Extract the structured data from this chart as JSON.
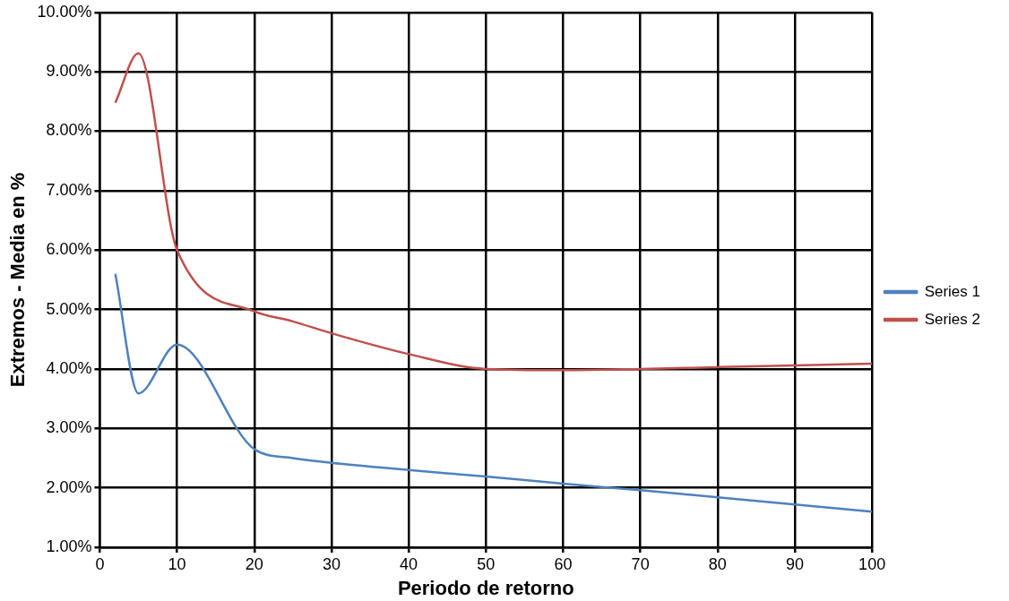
{
  "chart_data": {
    "type": "line",
    "xlabel": "Periodo de retorno",
    "ylabel": "Extremos - Media en %",
    "x": [
      2,
      5,
      10,
      20,
      25,
      30,
      40,
      50,
      60,
      70,
      80,
      90,
      100
    ],
    "series": [
      {
        "name": "Series 1",
        "color": "#4f81bd",
        "values": [
          5.6,
          3.59,
          4.41,
          2.65,
          2.5,
          2.42,
          2.3,
          2.19,
          2.07,
          1.96,
          1.84,
          1.72,
          1.6
        ]
      },
      {
        "name": "Series 2",
        "color": "#c0504d",
        "values": [
          8.48,
          9.31,
          6.0,
          4.97,
          4.8,
          4.6,
          4.25,
          4.0,
          3.98,
          4.0,
          4.03,
          4.06,
          4.09
        ]
      }
    ],
    "xlim": [
      0,
      100
    ],
    "xticks": [
      0,
      10,
      20,
      30,
      40,
      50,
      60,
      70,
      80,
      90,
      100
    ],
    "ylim": [
      1,
      10
    ],
    "yticks": [
      {
        "value": 1,
        "label": "1.00%"
      },
      {
        "value": 2,
        "label": "2.00%"
      },
      {
        "value": 3,
        "label": "3.00%"
      },
      {
        "value": 4,
        "label": "4.00%"
      },
      {
        "value": 5,
        "label": "5.00%"
      },
      {
        "value": 6,
        "label": "6.00%"
      },
      {
        "value": 7,
        "label": "7.00%"
      },
      {
        "value": 8,
        "label": "8.00%"
      },
      {
        "value": 9,
        "label": "9.00%"
      },
      {
        "value": 10,
        "label": "10.00%"
      }
    ],
    "grid": true,
    "legend": "right",
    "marker": "none",
    "line_style": "solid"
  }
}
